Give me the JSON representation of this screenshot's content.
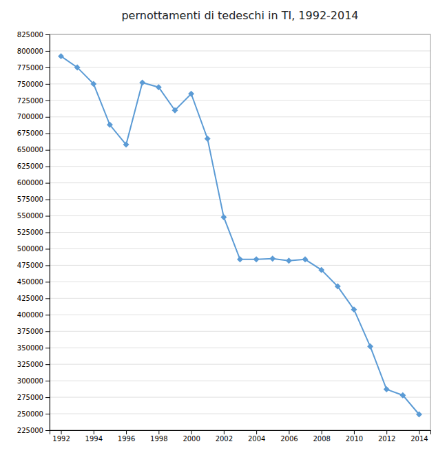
{
  "chart_data": {
    "type": "line",
    "title": "pernottamenti di tedeschi in TI, 1992-2014",
    "x": [
      1992,
      1993,
      1994,
      1995,
      1996,
      1997,
      1998,
      1999,
      2000,
      2001,
      2002,
      2003,
      2004,
      2005,
      2006,
      2007,
      2008,
      2009,
      2010,
      2011,
      2012,
      2013,
      2014
    ],
    "values": [
      792000,
      775000,
      750000,
      688000,
      658000,
      752000,
      745000,
      710000,
      735000,
      667000,
      548000,
      484000,
      484000,
      485000,
      482000,
      484000,
      468000,
      443000,
      408000,
      352000,
      287000,
      278000,
      249000
    ],
    "color": "#5B9BD5",
    "marker": "diamond",
    "xlim": [
      1991.3,
      2014.7
    ],
    "xticks": [
      1992,
      1994,
      1996,
      1998,
      2000,
      2002,
      2004,
      2006,
      2008,
      2010,
      2012,
      2014
    ],
    "ylim": [
      225000,
      825000
    ],
    "yticks": [
      225000,
      250000,
      275000,
      300000,
      325000,
      350000,
      375000,
      400000,
      425000,
      450000,
      475000,
      500000,
      525000,
      550000,
      575000,
      600000,
      625000,
      650000,
      675000,
      700000,
      725000,
      750000,
      775000,
      800000,
      825000
    ],
    "grid": true
  }
}
